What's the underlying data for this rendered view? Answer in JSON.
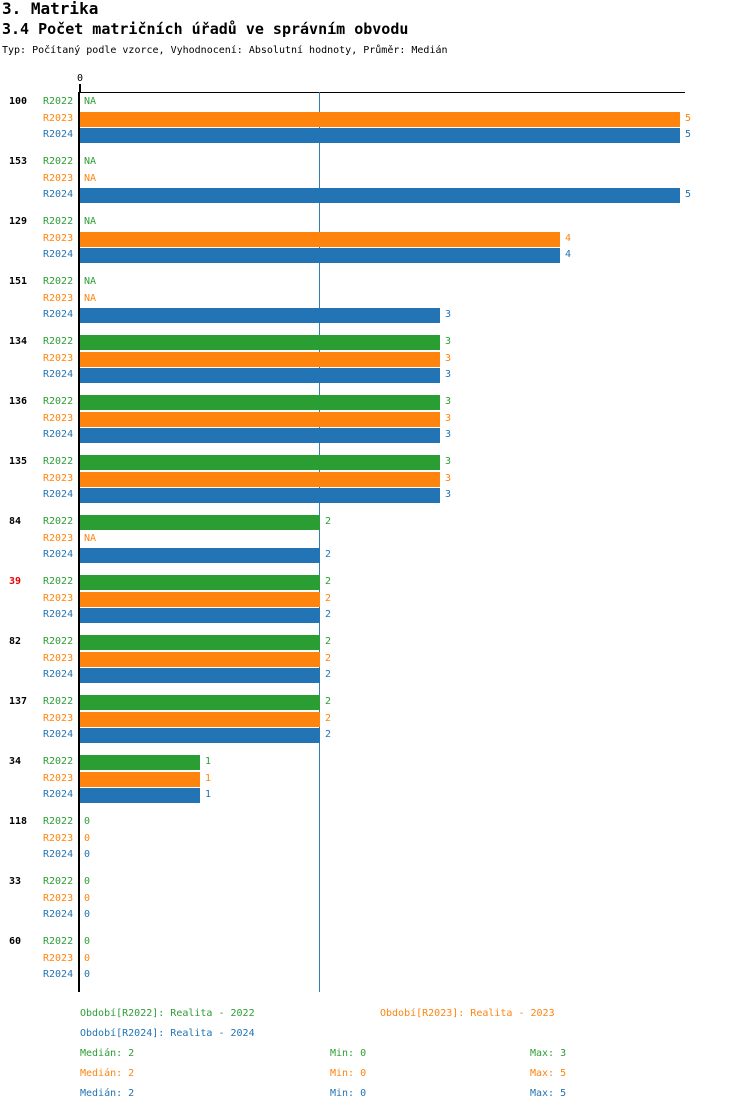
{
  "header": {
    "title": "3. Matrika",
    "subtitle": "3.4 Počet matričních úřadů ve správním obvodu",
    "meta": "Typ: Počítaný podle vzorce, Vyhodnocení: Absolutní hodnoty, Průměr: Medián"
  },
  "colors": {
    "r2022": "#2B9E33",
    "r2023": "#FF840E",
    "r2024": "#2274B5",
    "highlight": "#EE0000",
    "category": "#000000",
    "axis": "#000000",
    "median_line": "#2E7CB0"
  },
  "chart_data": {
    "type": "bar",
    "orientation": "horizontal",
    "title": "3.4 Počet matričních úřadů ve správním obvodu",
    "xlim": [
      0,
      5
    ],
    "axis_tick_label": "0",
    "median_line_value": 2,
    "na_label": "NA",
    "categories": [
      "100",
      "153",
      "129",
      "151",
      "134",
      "136",
      "135",
      "84",
      "39",
      "82",
      "137",
      "34",
      "118",
      "33",
      "60"
    ],
    "highlighted_categories": [
      "39"
    ],
    "series": [
      {
        "name": "R2022",
        "color_key": "r2022",
        "values": [
          null,
          null,
          null,
          null,
          3,
          3,
          3,
          2,
          2,
          2,
          2,
          1,
          0,
          0,
          0
        ]
      },
      {
        "name": "R2023",
        "color_key": "r2023",
        "values": [
          5,
          null,
          4,
          null,
          3,
          3,
          3,
          null,
          2,
          2,
          2,
          1,
          0,
          0,
          0
        ]
      },
      {
        "name": "R2024",
        "color_key": "r2024",
        "values": [
          5,
          5,
          4,
          3,
          3,
          3,
          3,
          2,
          2,
          2,
          2,
          1,
          0,
          0,
          0
        ]
      }
    ]
  },
  "legend": {
    "periods": [
      {
        "label": "Období[R2022]: Realita - 2022",
        "color_key": "r2022"
      },
      {
        "label": "Období[R2023]: Realita - 2023",
        "color_key": "r2023"
      },
      {
        "label": "Období[R2024]: Realita - 2024",
        "color_key": "r2024"
      }
    ],
    "stats": [
      {
        "median": "Medián: 2",
        "min": "Min: 0",
        "max": "Max: 3",
        "color_key": "r2022"
      },
      {
        "median": "Medián: 2",
        "min": "Min: 0",
        "max": "Max: 5",
        "color_key": "r2023"
      },
      {
        "median": "Medián: 2",
        "min": "Min: 0",
        "max": "Max: 5",
        "color_key": "r2024"
      }
    ]
  }
}
